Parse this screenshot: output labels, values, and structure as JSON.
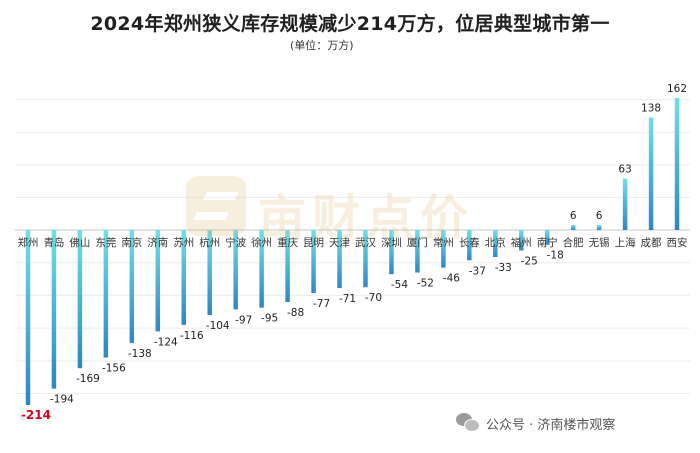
{
  "header": {
    "title": "2024年郑州狭义库存规模减少214万方，位居典型城市第一",
    "subtitle": "(单位：万方)"
  },
  "watermark": {
    "text": "亩财点价"
  },
  "footer": {
    "text": "公众号 · 济南楼市观察",
    "icon": "wechat-icon"
  },
  "colors": {
    "bar_top": "#6fe0e6",
    "bar_bottom": "#2f86c4",
    "highlight_label": "#d0021b"
  },
  "chart_data": {
    "type": "bar",
    "title": "2024年郑州狭义库存规模减少214万方，位居典型城市第一",
    "ylabel": "",
    "xlabel": "",
    "unit": "(单位：万方)",
    "ylim": [
      -214,
      162
    ],
    "grid": true,
    "legend": "none",
    "categories": [
      "郑州",
      "青岛",
      "佛山",
      "东莞",
      "南京",
      "济南",
      "苏州",
      "杭州",
      "宁波",
      "徐州",
      "重庆",
      "昆明",
      "天津",
      "武汉",
      "深圳",
      "厦门",
      "常州",
      "长春",
      "北京",
      "福州",
      "南宁",
      "合肥",
      "无锡",
      "上海",
      "成都",
      "西安"
    ],
    "values": [
      -214,
      -194,
      -169,
      -156,
      -138,
      -124,
      -116,
      -104,
      -97,
      -95,
      -88,
      -77,
      -71,
      -70,
      -54,
      -52,
      -46,
      -37,
      -33,
      -25,
      -18,
      6,
      6,
      63,
      138,
      162
    ],
    "highlight_index": 0
  }
}
